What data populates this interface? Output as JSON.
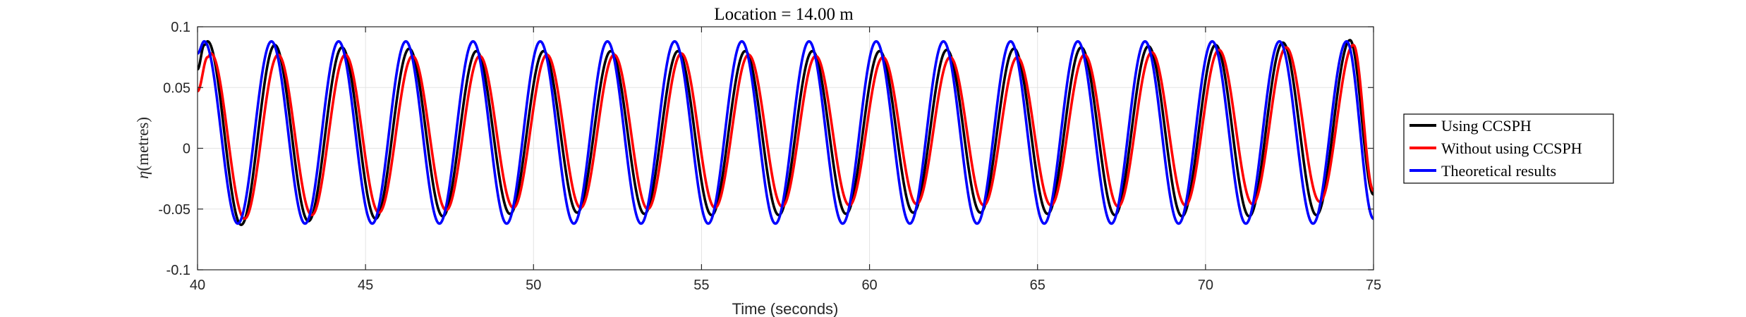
{
  "chart_data": {
    "type": "line",
    "title": "Location = 14.00 m",
    "xlabel": "Time (seconds)",
    "ylabel": "(metres)",
    "ylabel_symbol": "η",
    "xlim": [
      40,
      75
    ],
    "ylim": [
      -0.1,
      0.1
    ],
    "xticks": [
      40,
      45,
      50,
      55,
      60,
      65,
      70,
      75
    ],
    "yticks": [
      -0.1,
      -0.05,
      0,
      0.05,
      0.1
    ],
    "ytick_labels": [
      "-0.1",
      "-0.05",
      "0",
      "0.05",
      "0.1"
    ],
    "grid": true,
    "legend_position": "outside-right",
    "wave_period": 2.0,
    "series": [
      {
        "name": "Using CCSPH",
        "color": "#000000",
        "x": [
          40.0,
          40.2,
          40.3,
          41.3,
          42.3,
          43.3,
          44.3,
          45.3,
          46.3,
          47.3,
          48.3,
          49.3,
          50.3,
          51.3,
          52.3,
          53.3,
          54.3,
          55.3,
          56.3,
          57.3,
          58.3,
          59.3,
          60.3,
          61.3,
          62.3,
          63.3,
          64.3,
          65.3,
          66.3,
          67.3,
          68.3,
          69.3,
          70.3,
          71.3,
          72.3,
          73.3,
          74.3,
          75.0
        ],
        "y": [
          0.065,
          0.085,
          0.088,
          -0.063,
          0.085,
          -0.06,
          0.083,
          -0.058,
          0.082,
          -0.056,
          0.08,
          -0.054,
          0.08,
          -0.053,
          0.08,
          -0.054,
          0.08,
          -0.055,
          0.08,
          -0.055,
          0.08,
          -0.054,
          0.08,
          -0.053,
          0.081,
          -0.053,
          0.082,
          -0.054,
          0.083,
          -0.055,
          0.084,
          -0.056,
          0.085,
          -0.056,
          0.087,
          -0.055,
          0.089,
          -0.038
        ]
      },
      {
        "name": "Without using CCSPH",
        "color": "#ff0000",
        "x": [
          40.0,
          40.3,
          40.4,
          41.4,
          42.4,
          43.4,
          44.4,
          45.4,
          46.4,
          47.4,
          48.4,
          49.4,
          50.4,
          51.4,
          52.4,
          53.4,
          54.4,
          55.4,
          56.4,
          57.4,
          58.4,
          59.4,
          60.4,
          61.4,
          62.4,
          63.4,
          64.4,
          65.4,
          66.4,
          67.4,
          68.4,
          69.4,
          70.4,
          71.4,
          72.4,
          73.4,
          74.4,
          75.0
        ],
        "y": [
          0.047,
          0.075,
          0.078,
          -0.058,
          0.077,
          -0.055,
          0.077,
          -0.053,
          0.076,
          -0.051,
          0.076,
          -0.049,
          0.077,
          -0.049,
          0.077,
          -0.05,
          0.078,
          -0.049,
          0.077,
          -0.048,
          0.076,
          -0.047,
          0.075,
          -0.046,
          0.075,
          -0.047,
          0.075,
          -0.047,
          0.077,
          -0.048,
          0.079,
          -0.047,
          0.081,
          -0.046,
          0.083,
          -0.044,
          0.085,
          -0.035
        ]
      },
      {
        "name": "Theoretical results",
        "color": "#0000ff",
        "x": [
          40.0,
          40.2,
          41.2,
          42.2,
          43.2,
          44.2,
          45.2,
          46.2,
          47.2,
          48.2,
          49.2,
          50.2,
          51.2,
          52.2,
          53.2,
          54.2,
          55.2,
          56.2,
          57.2,
          58.2,
          59.2,
          60.2,
          61.2,
          62.2,
          63.2,
          64.2,
          65.2,
          66.2,
          67.2,
          68.2,
          69.2,
          70.2,
          71.2,
          72.2,
          73.2,
          74.2,
          75.0
        ],
        "y": [
          0.078,
          0.088,
          -0.062,
          0.088,
          -0.062,
          0.088,
          -0.062,
          0.088,
          -0.062,
          0.088,
          -0.062,
          0.088,
          -0.062,
          0.088,
          -0.062,
          0.088,
          -0.062,
          0.088,
          -0.062,
          0.088,
          -0.062,
          0.088,
          -0.062,
          0.088,
          -0.062,
          0.088,
          -0.062,
          0.088,
          -0.062,
          0.088,
          -0.062,
          0.088,
          -0.062,
          0.088,
          -0.062,
          0.088,
          -0.058
        ]
      }
    ]
  }
}
